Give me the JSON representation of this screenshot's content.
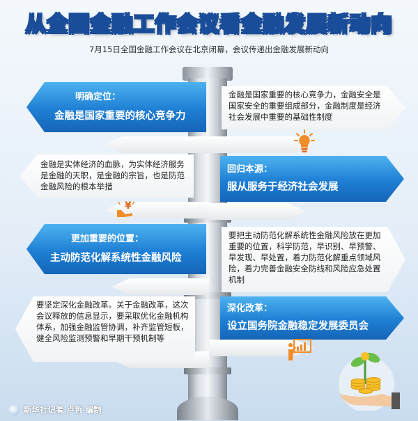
{
  "title": "从全国金融工作会议看金融发展新动向",
  "subtitle": "7月15日全国金融工作会议在北京闭幕，会议传递出金融发展新动向",
  "signs": [
    {
      "head": "明确定位：",
      "body": "金融是国家重要的核心竞争力"
    },
    {
      "text": "金融是国家重要的核心竞争力，金融安全是国家安全的重要组成部分，金融制度是经济社会发展中重要的基础性制度"
    },
    {
      "text": "金融是实体经济的血脉，为实体经济服务是金融的天职，是金融的宗旨，也是防范金融风险的根本举措"
    },
    {
      "head": "回归本源：",
      "body": "服从服务于经济社会发展"
    },
    {
      "head": "更加重要的位置：",
      "body": "主动防范化解系统性金融风险"
    },
    {
      "text": "要把主动防范化解系统性金融风险放在更加重要的位置，科学防范，早识别、早预警、早发现、早处置，着力防范化解重点领域风险，着力完善金融安全防线和风险应急处置机制"
    },
    {
      "text": "要坚定深化金融改革。关于金融改革，这次会议释放的信息显示，要采取优化金融机构体系，加强金融监管协调，补齐监管短板，健全风险监测预警和早期干预机制等"
    },
    {
      "head": "深化改革：",
      "body": "设立国务院金融稳定发展委员会"
    }
  ],
  "icons": {
    "lightbulb": "lightbulb-icon",
    "money": "money-icon",
    "chart": "chart-presentation-icon",
    "coins": "coins-plant-icon"
  },
  "credit": "新华社记者 卢哲 编制",
  "colors": {
    "sign_blue": "#1e7fd4",
    "title_gold": "#ffd34a",
    "title_outline": "#1a4d99"
  }
}
